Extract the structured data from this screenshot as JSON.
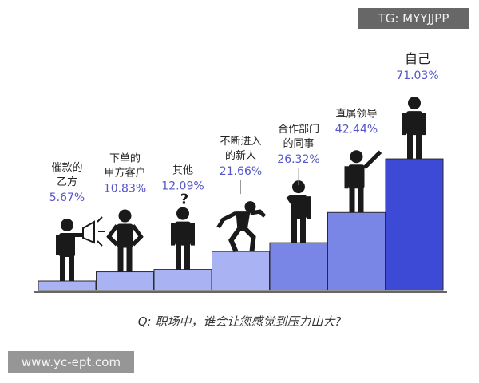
{
  "watermark_top": "TG: MYYJJPP",
  "watermark_bottom": "www.yc-ept.com",
  "question": "Q: 职场中，谁会让您感觉到压力山大?",
  "colors": {
    "bar_light": "#a9b2f2",
    "bar_mid": "#7a86e6",
    "bar_dark": "#3d4ad6",
    "bar_stroke": "#2a2a2a",
    "label": "#222222",
    "value": "#5555cc",
    "figure": "#1a1a1a"
  },
  "chart_data": {
    "type": "bar",
    "categories": [
      [
        "催款的",
        "乙方"
      ],
      [
        "下单的",
        "甲方客户"
      ],
      [
        "其他"
      ],
      [
        "不断进入",
        "的新人"
      ],
      [
        "合作部门",
        "的同事"
      ],
      [
        "直属领导"
      ],
      [
        "自己"
      ]
    ],
    "values": [
      5.67,
      10.83,
      12.09,
      21.66,
      26.32,
      42.44,
      71.03
    ],
    "value_labels": [
      "5.67%",
      "10.83%",
      "12.09%",
      "21.66%",
      "26.32%",
      "42.44%",
      "71.03%"
    ],
    "icons": [
      "megaphone-person-icon",
      "client-person-icon",
      "question-person-icon",
      "climbing-person-icon",
      "standing-person-icon",
      "pointing-person-icon",
      "self-person-icon"
    ]
  }
}
